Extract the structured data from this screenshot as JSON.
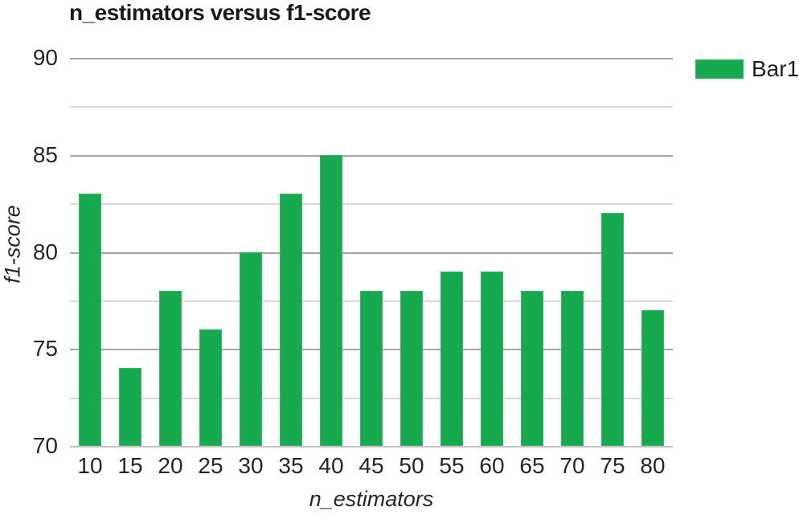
{
  "chart_data": {
    "type": "bar",
    "title": "n_estimators versus f1-score",
    "xlabel": "n_estimators",
    "ylabel": "f1-score",
    "categories": [
      "10",
      "15",
      "20",
      "25",
      "30",
      "35",
      "40",
      "45",
      "50",
      "55",
      "60",
      "65",
      "70",
      "75",
      "80"
    ],
    "values": [
      83,
      74,
      78,
      76,
      80,
      83,
      85,
      78,
      78,
      79,
      79,
      78,
      78,
      82,
      77
    ],
    "ylim": [
      70,
      90
    ],
    "y_major_ticks": [
      90,
      85,
      80,
      75,
      70
    ],
    "y_minor_step": 2.5,
    "grid": "horizontal-major-and-minor",
    "legend": {
      "label": "Bar1",
      "position": "top-right"
    },
    "colors": {
      "bar": "#17a94e",
      "bar_edge": "#3ab367",
      "major_grid": "#a6a6a6",
      "minor_grid": "#d8d8d8",
      "baseline_grid": "#c2c2c2",
      "text": "#262626",
      "title_text": "#1a1a1a",
      "background": "#ffffff"
    }
  }
}
